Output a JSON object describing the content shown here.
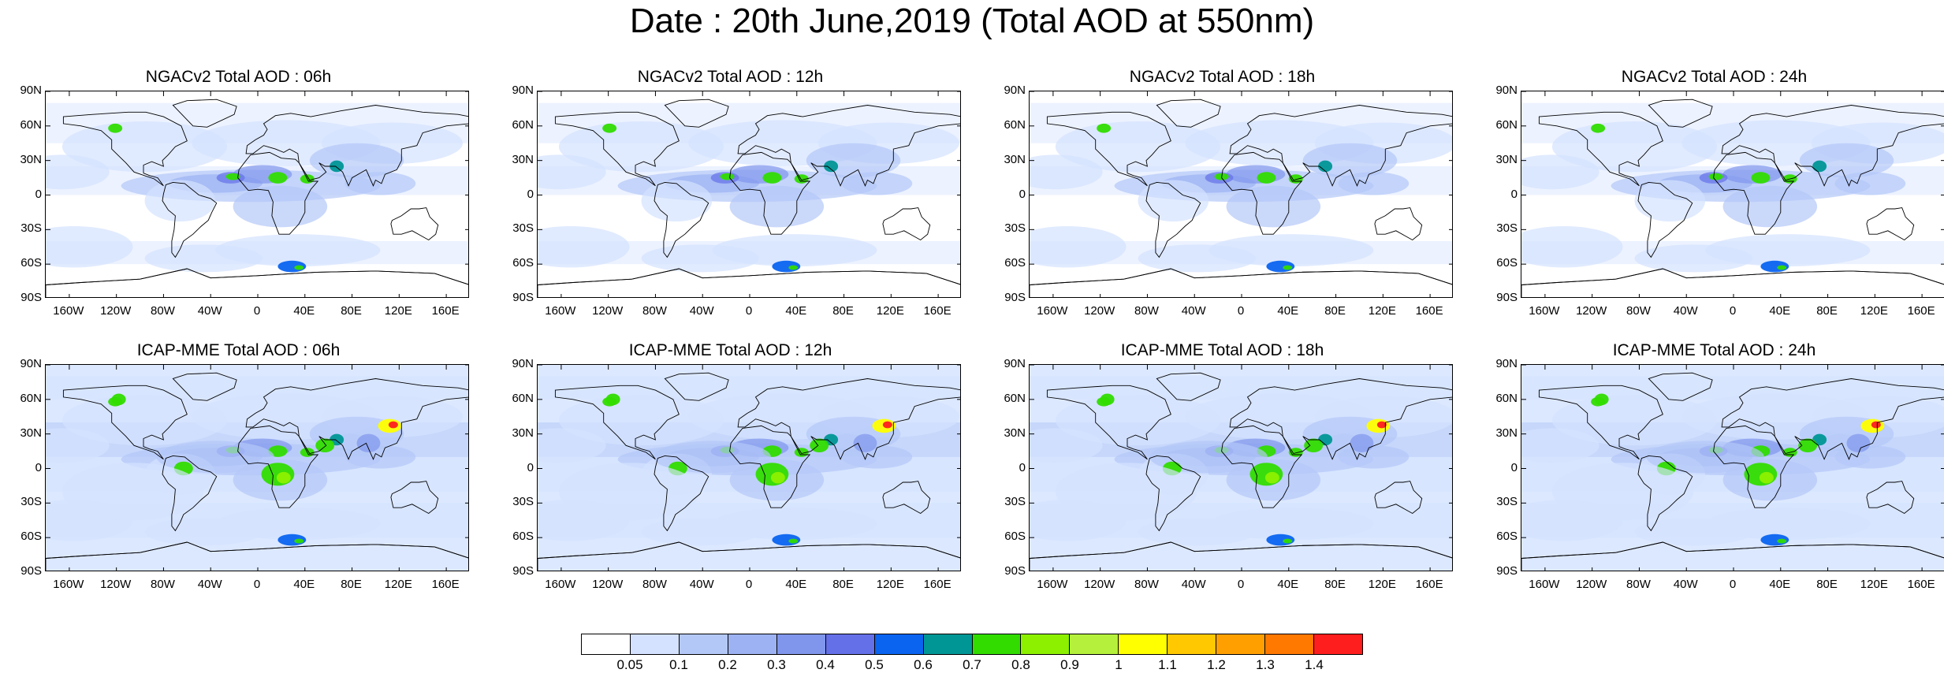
{
  "title": "Date : 20th June,2019 (Total AOD at 550nm)",
  "panels": [
    {
      "title": "NGACv2 Total AOD : 06h",
      "model": "NGACv2",
      "hour": "06h"
    },
    {
      "title": "NGACv2 Total AOD : 12h",
      "model": "NGACv2",
      "hour": "12h"
    },
    {
      "title": "NGACv2 Total AOD : 18h",
      "model": "NGACv2",
      "hour": "18h"
    },
    {
      "title": "NGACv2 Total AOD : 24h",
      "model": "NGACv2",
      "hour": "24h"
    },
    {
      "title": "ICAP-MME Total AOD : 06h",
      "model": "ICAP-MME",
      "hour": "06h"
    },
    {
      "title": "ICAP-MME Total AOD : 12h",
      "model": "ICAP-MME",
      "hour": "12h"
    },
    {
      "title": "ICAP-MME Total AOD : 18h",
      "model": "ICAP-MME",
      "hour": "18h"
    },
    {
      "title": "ICAP-MME Total AOD : 24h",
      "model": "ICAP-MME",
      "hour": "24h"
    }
  ],
  "lat_labels": [
    "90N",
    "60N",
    "30N",
    "0",
    "30S",
    "60S",
    "90S"
  ],
  "lon_labels": [
    "160W",
    "120W",
    "80W",
    "40W",
    "0",
    "40E",
    "80E",
    "120E",
    "160E"
  ],
  "colorbar": {
    "labels": [
      "0.05",
      "0.1",
      "0.2",
      "0.3",
      "0.4",
      "0.5",
      "0.6",
      "0.7",
      "0.8",
      "0.9",
      "1",
      "1.1",
      "1.2",
      "1.3",
      "1.4"
    ],
    "colors": [
      "#ffffff",
      "#d4e2ff",
      "#b4c8f8",
      "#9cb2f2",
      "#8096ec",
      "#6470e8",
      "#0a64f0",
      "#009696",
      "#32dc00",
      "#8cf000",
      "#b4f03c",
      "#ffff00",
      "#ffc800",
      "#ffa000",
      "#ff7800",
      "#ff1e1e"
    ]
  }
}
